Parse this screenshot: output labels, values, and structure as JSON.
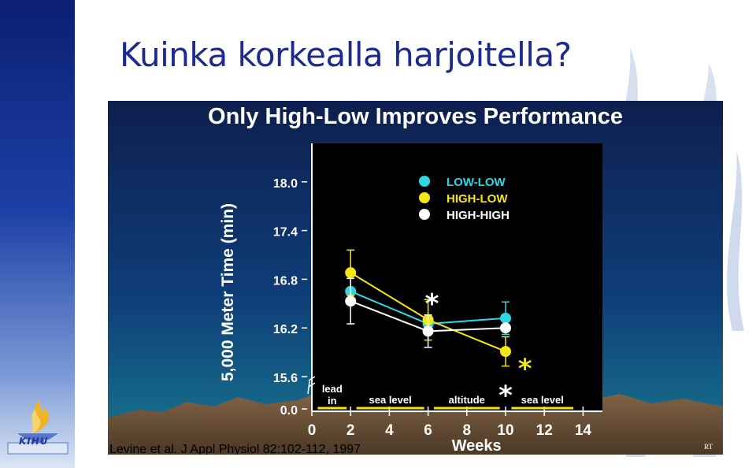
{
  "slide": {
    "title": "Kuinka korkealla harjoitella?",
    "logo_text": "KIHU",
    "colors": {
      "sidebar_top": "#0b1f73",
      "title": "#1b2a8c",
      "figure_bg": "#0f3d78"
    }
  },
  "citation": "Levine et al. J Appl Physiol 82:102-112, 1997",
  "corner_mark": "RT",
  "icons": {
    "logo": "torch-flame-icon"
  },
  "chart_data": {
    "type": "line",
    "title": "Only High-Low Improves Performance",
    "xlabel": "Weeks",
    "ylabel": "5,000 Meter Time (min)",
    "x_ticks": [
      0,
      2,
      4,
      6,
      8,
      10,
      12,
      14
    ],
    "y_ticks": [
      "0.0",
      "15.6",
      "16.2",
      "16.8",
      "17.4",
      "18.0"
    ],
    "y_break": true,
    "ylim": [
      15.6,
      18.0
    ],
    "legend_position": "top-right",
    "series": [
      {
        "name": "LOW-LOW",
        "color": "#2fd6e6",
        "x": [
          2,
          6,
          10
        ],
        "y": [
          16.65,
          16.25,
          16.32
        ],
        "err": [
          0,
          0,
          0.2
        ]
      },
      {
        "name": "HIGH-LOW",
        "color": "#f6e712",
        "x": [
          2,
          6,
          10
        ],
        "y": [
          16.88,
          16.3,
          15.91
        ],
        "err": [
          0.28,
          0.25,
          0.18
        ]
      },
      {
        "name": "HIGH-HIGH",
        "color": "#ffffff",
        "x": [
          2,
          6,
          10
        ],
        "y": [
          16.53,
          16.16,
          16.2
        ],
        "err": [
          0.28,
          0.2,
          0
        ]
      }
    ],
    "significance_marks": [
      {
        "text": "*",
        "x": 6.2,
        "y": 16.6,
        "color": "#ffffff"
      },
      {
        "text": "*",
        "x": 11,
        "y": 15.8,
        "color": "#f6e712"
      },
      {
        "text": "*",
        "x": 10,
        "y": 15.47,
        "color": "#ffffff"
      }
    ],
    "phases": [
      {
        "label": "lead in",
        "lines": [
          "lead",
          "in"
        ],
        "start": 0.3,
        "end": 1.8
      },
      {
        "label": "sea level",
        "lines": [
          "sea level"
        ],
        "start": 2.3,
        "end": 5.8
      },
      {
        "label": "altitude",
        "lines": [
          "altitude"
        ],
        "start": 6.3,
        "end": 9.7
      },
      {
        "label": "sea level",
        "lines": [
          "sea level"
        ],
        "start": 10.3,
        "end": 13.5
      }
    ]
  }
}
